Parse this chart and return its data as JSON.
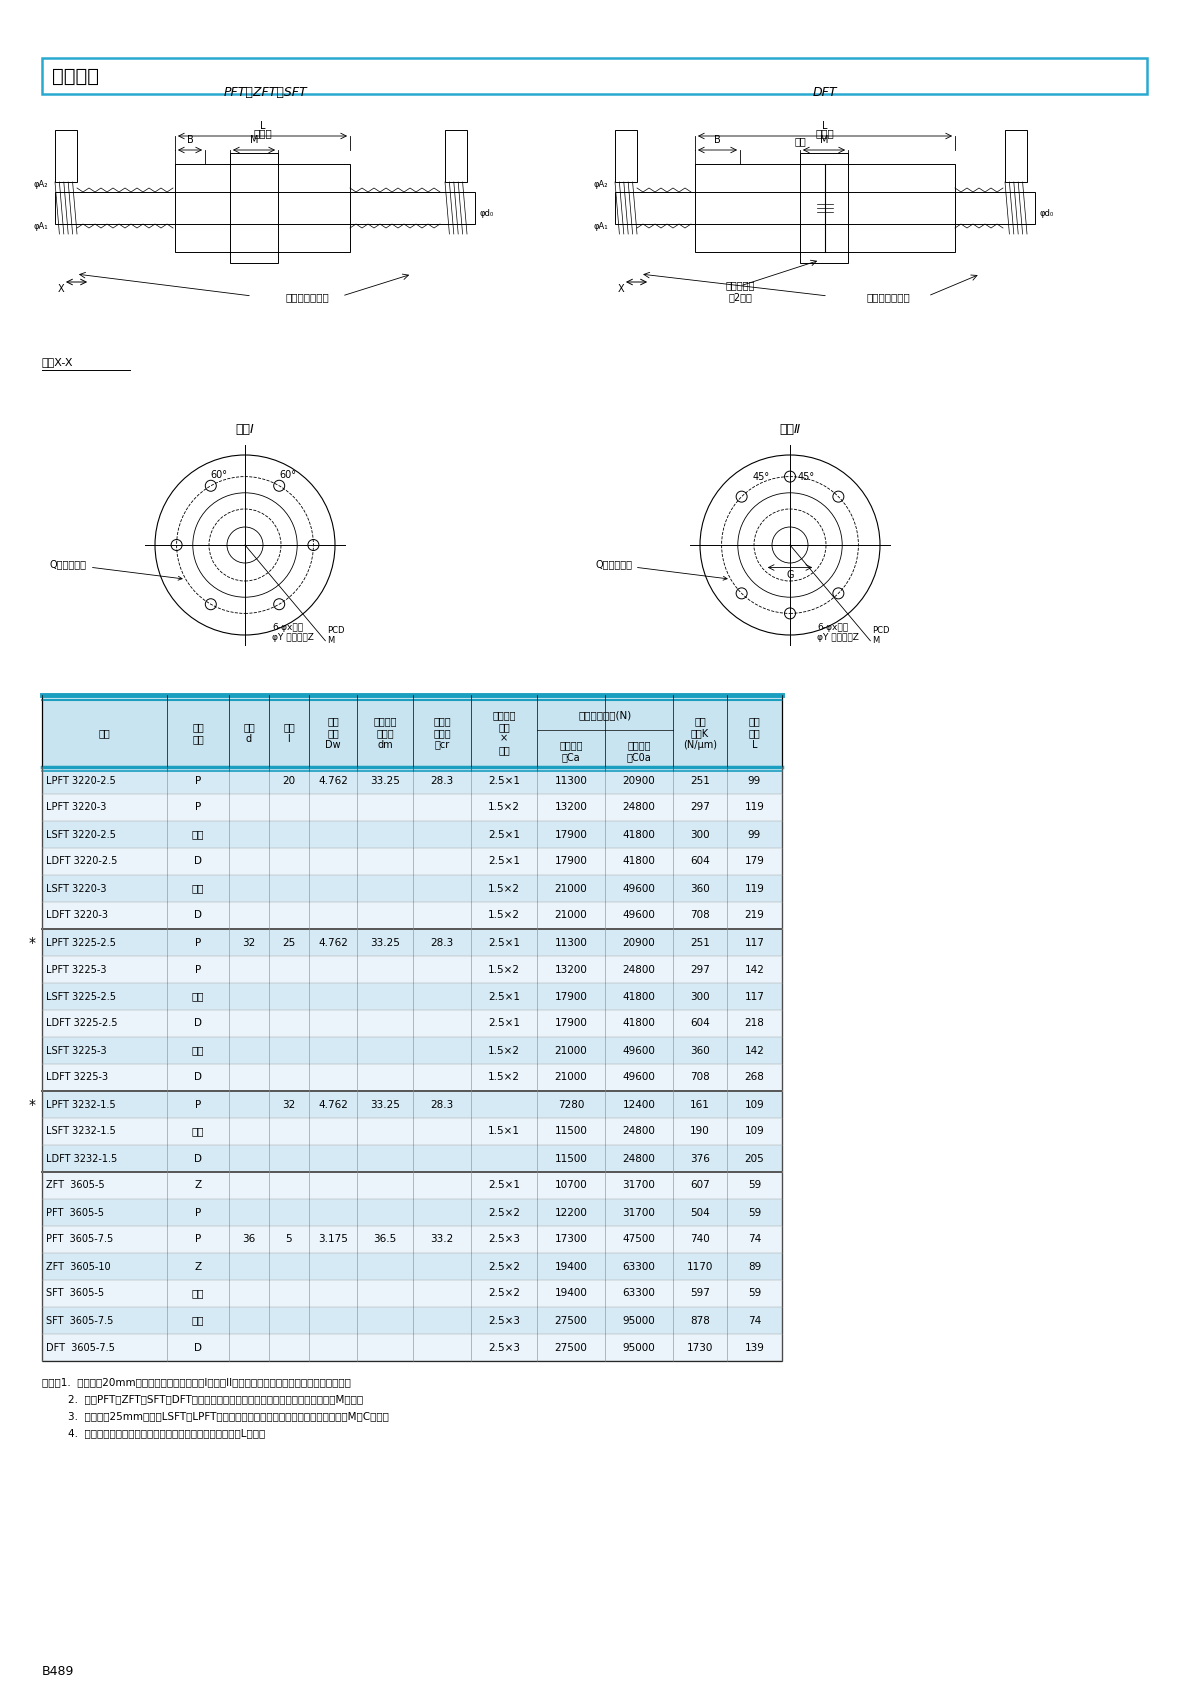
{
  "title": "管循环式",
  "bg_color": "#ffffff",
  "header_color": "#00aacc",
  "page_id": "B489",
  "col_headers": [
    "型号",
    "预压\n方式",
    "轴径\nd",
    "导程\nl",
    "滚珠\n直径\nDw",
    "滚珠间距\n圆直径\ndm",
    "螺纹轴\n底槽直\n径cr",
    "有效圈数\n圈数\n×\n列数",
    "额定动负\n载Ca",
    "额定静负\n载C0a",
    "轴向\n刚性K\n(N/μm)",
    "螺母\n长度\nL"
  ],
  "span_header": "基本额定负载(N)",
  "rows": [
    [
      "LPFT 3220-2.5",
      "P",
      "",
      "20",
      "4.762",
      "33.25",
      "28.3",
      "2.5×1",
      "11300",
      "20900",
      "251",
      "99"
    ],
    [
      "LPFT 3220-3",
      "P",
      "",
      "",
      "",
      "",
      "",
      "1.5×2",
      "13200",
      "24800",
      "297",
      "119"
    ],
    [
      "LSFT 3220-2.5",
      "间隙",
      "",
      "",
      "",
      "",
      "",
      "2.5×1",
      "17900",
      "41800",
      "300",
      "99"
    ],
    [
      "LDFT 3220-2.5",
      "D",
      "",
      "",
      "",
      "",
      "",
      "2.5×1",
      "17900",
      "41800",
      "604",
      "179"
    ],
    [
      "LSFT 3220-3",
      "间隙",
      "",
      "",
      "",
      "",
      "",
      "1.5×2",
      "21000",
      "49600",
      "360",
      "119"
    ],
    [
      "LDFT 3220-3",
      "D",
      "",
      "",
      "",
      "",
      "",
      "1.5×2",
      "21000",
      "49600",
      "708",
      "219"
    ],
    [
      "LPFT 3225-2.5",
      "P",
      "32",
      "25",
      "4.762",
      "33.25",
      "28.3",
      "2.5×1",
      "11300",
      "20900",
      "251",
      "117"
    ],
    [
      "LPFT 3225-3",
      "P",
      "",
      "",
      "",
      "",
      "",
      "1.5×2",
      "13200",
      "24800",
      "297",
      "142"
    ],
    [
      "LSFT 3225-2.5",
      "间隙",
      "",
      "",
      "",
      "",
      "",
      "2.5×1",
      "17900",
      "41800",
      "300",
      "117"
    ],
    [
      "LDFT 3225-2.5",
      "D",
      "",
      "",
      "",
      "",
      "",
      "2.5×1",
      "17900",
      "41800",
      "604",
      "218"
    ],
    [
      "LSFT 3225-3",
      "间隙",
      "",
      "",
      "",
      "",
      "",
      "1.5×2",
      "21000",
      "49600",
      "360",
      "142"
    ],
    [
      "LDFT 3225-3",
      "D",
      "",
      "",
      "",
      "",
      "",
      "1.5×2",
      "21000",
      "49600",
      "708",
      "268"
    ],
    [
      "LPFT 3232-1.5",
      "P",
      "",
      "32",
      "4.762",
      "33.25",
      "28.3",
      "",
      "7280",
      "12400",
      "161",
      "109"
    ],
    [
      "LSFT 3232-1.5",
      "间隙",
      "",
      "",
      "",
      "",
      "",
      "1.5×1",
      "11500",
      "24800",
      "190",
      "109"
    ],
    [
      "LDFT 3232-1.5",
      "D",
      "",
      "",
      "",
      "",
      "",
      "",
      "11500",
      "24800",
      "376",
      "205"
    ],
    [
      "ZFT  3605-5",
      "Z",
      "",
      "",
      "",
      "",
      "",
      "2.5×1",
      "10700",
      "31700",
      "607",
      "59"
    ],
    [
      "PFT  3605-5",
      "P",
      "",
      "",
      "",
      "",
      "",
      "2.5×2",
      "12200",
      "31700",
      "504",
      "59"
    ],
    [
      "PFT  3605-7.5",
      "P",
      "36",
      "5",
      "3.175",
      "36.5",
      "33.2",
      "2.5×3",
      "17300",
      "47500",
      "740",
      "74"
    ],
    [
      "ZFT  3605-10",
      "Z",
      "",
      "",
      "",
      "",
      "",
      "2.5×2",
      "19400",
      "63300",
      "1170",
      "89"
    ],
    [
      "SFT  3605-5",
      "间隙",
      "",
      "",
      "",
      "",
      "",
      "2.5×2",
      "19400",
      "63300",
      "597",
      "59"
    ],
    [
      "SFT  3605-7.5",
      "间隙",
      "",
      "",
      "",
      "",
      "",
      "2.5×3",
      "27500",
      "95000",
      "878",
      "74"
    ],
    [
      "DFT  3605-7.5",
      "D",
      "",
      "",
      "",
      "",
      "",
      "2.5×3",
      "27500",
      "95000",
      "1730",
      "139"
    ]
  ],
  "star_rows": [
    6,
    12
  ],
  "group_ends": [
    5,
    11,
    14
  ],
  "notes": [
    "备注：1.  轴外径在20mm以上的法兰盘形状为圆形I和圆形II，请根据螺母安装部的空间选定所需型号。",
    "        2.  对于PFT、ZFT、SFT、DFT型号，没有密封时，螺母的长度与带密封相比，只有M变短。",
    "        3.  轴外径在25mm以上的LSFT、LPFT，没有密封时，螺母的长度与带密封相比，只有M、C变短。",
    "        4.  右旋螺纹为标准型号。若为左旋螺纹，则在型号的末尾有L字母。"
  ]
}
